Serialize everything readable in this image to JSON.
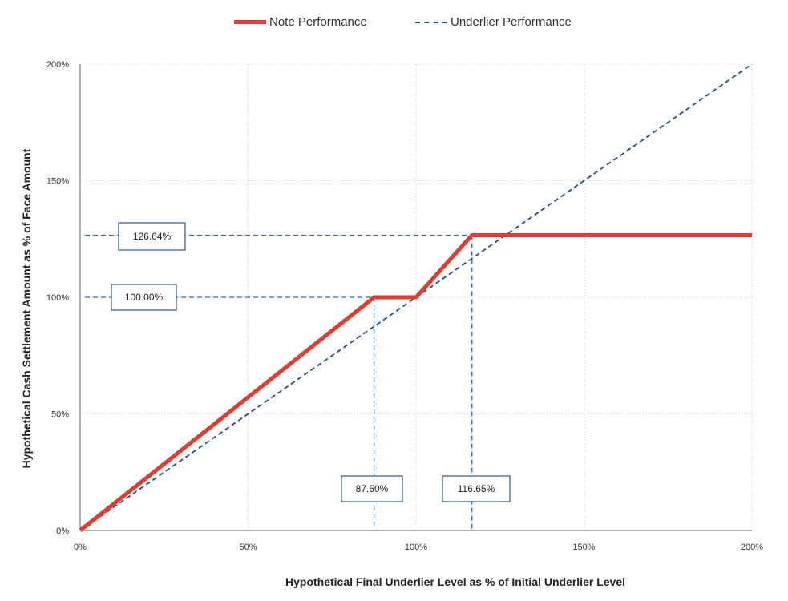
{
  "legend": {
    "note_label": "Note Performance",
    "underlier_label": "Underlier Performance"
  },
  "axes": {
    "ylabel": "Hypothetical Cash Settlement Amount as % of Face Amount",
    "xlabel": "Hypothetical Final Underlier Level as % of Initial Underlier Level"
  },
  "colors": {
    "note": "#e03c31",
    "underlier": "#1f4e9a",
    "callout_border": "#2f5597",
    "grid": "#d0d0d0"
  },
  "chart_data": {
    "type": "line",
    "xlim": [
      0,
      200
    ],
    "ylim": [
      0,
      200
    ],
    "x_ticks": [
      0,
      50,
      100,
      150,
      200
    ],
    "y_ticks": [
      0,
      50,
      100,
      150,
      200
    ],
    "x_tick_labels": [
      "0%",
      "50%",
      "100%",
      "150%",
      "200%"
    ],
    "y_tick_labels": [
      "0%",
      "50%",
      "100%",
      "150%",
      "200%"
    ],
    "grid": true,
    "legend_position": "top-center",
    "series": [
      {
        "name": "Note Performance",
        "style": "solid",
        "points": [
          [
            0,
            0
          ],
          [
            87.5,
            100
          ],
          [
            100,
            100
          ],
          [
            116.65,
            126.64
          ],
          [
            200,
            126.64
          ]
        ]
      },
      {
        "name": "Underlier Performance",
        "style": "dashed",
        "points": [
          [
            0,
            0
          ],
          [
            200,
            200
          ]
        ]
      }
    ],
    "annotations": [
      {
        "label": "126.64%",
        "axis": "y",
        "value": 126.64,
        "x_end": 116.65
      },
      {
        "label": "100.00%",
        "axis": "y",
        "value": 100,
        "x_end": 87.5
      },
      {
        "label": "87.50%",
        "axis": "x",
        "value": 87.5,
        "y_end": 100
      },
      {
        "label": "116.65%",
        "axis": "x",
        "value": 116.65,
        "y_end": 126.64
      }
    ]
  }
}
